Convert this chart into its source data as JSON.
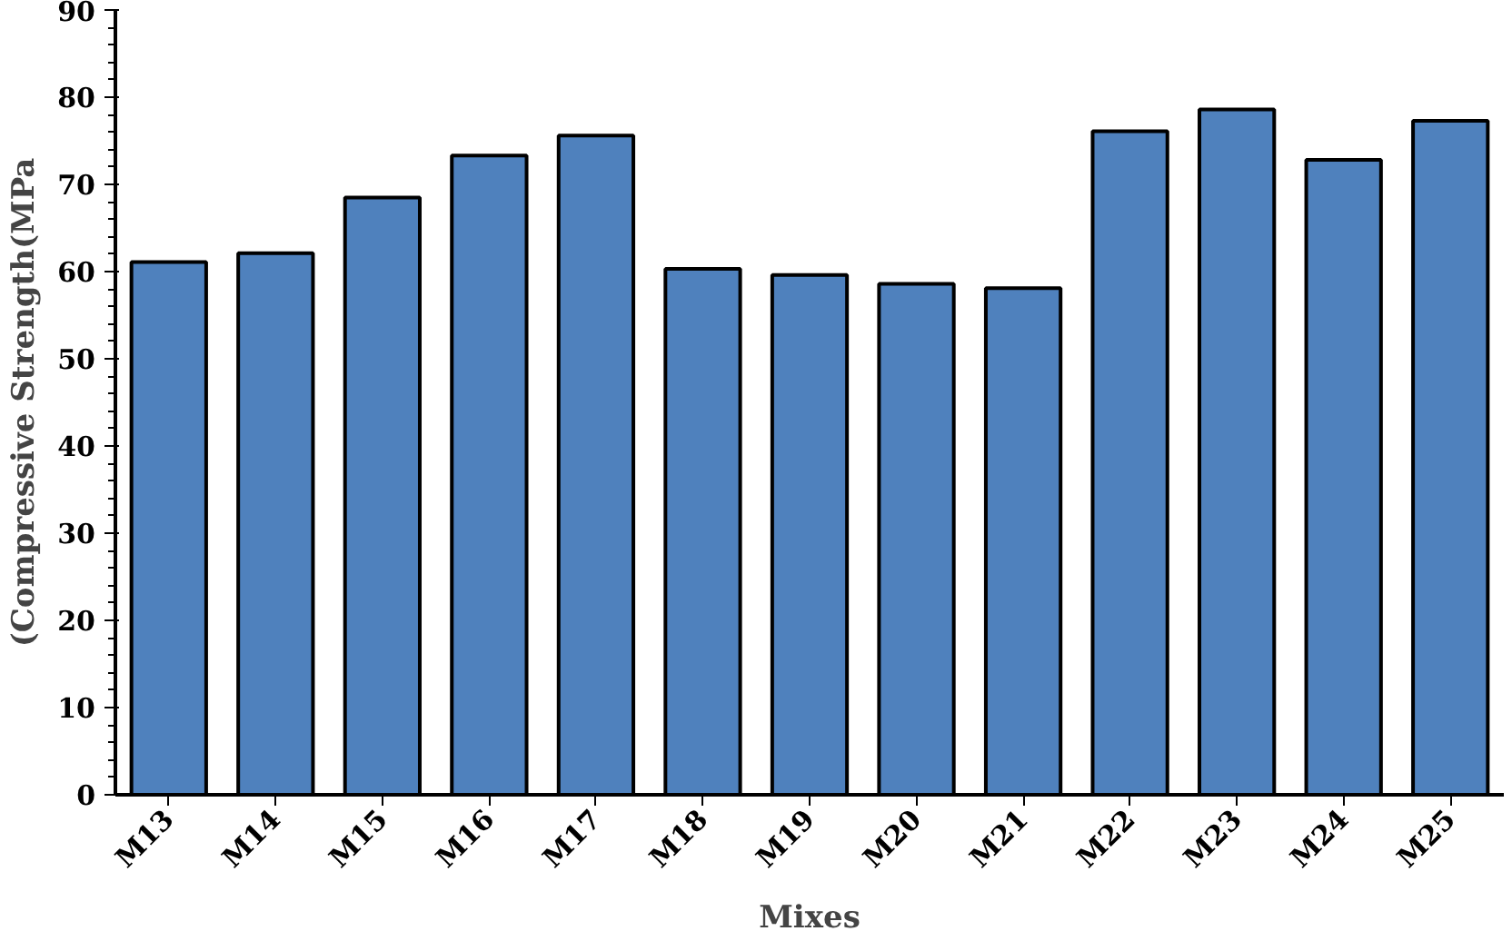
{
  "chart_data": {
    "type": "bar",
    "xlabel": "Mixes",
    "ylabel": "(Compressive Strength(MPa",
    "categories": [
      "M13",
      "M14",
      "M15",
      "M16",
      "M17",
      "M18",
      "M19",
      "M20",
      "M21",
      "M22",
      "M23",
      "M24",
      "M25"
    ],
    "values": [
      61.1,
      62.1,
      68.5,
      73.3,
      75.6,
      60.3,
      59.6,
      58.6,
      58.1,
      76.1,
      78.6,
      72.8,
      77.3
    ],
    "color": "#4f81bd",
    "ylim": [
      0,
      90
    ],
    "yticks": [
      0,
      10,
      20,
      30,
      40,
      50,
      60,
      70,
      80,
      90
    ],
    "grid": false
  }
}
